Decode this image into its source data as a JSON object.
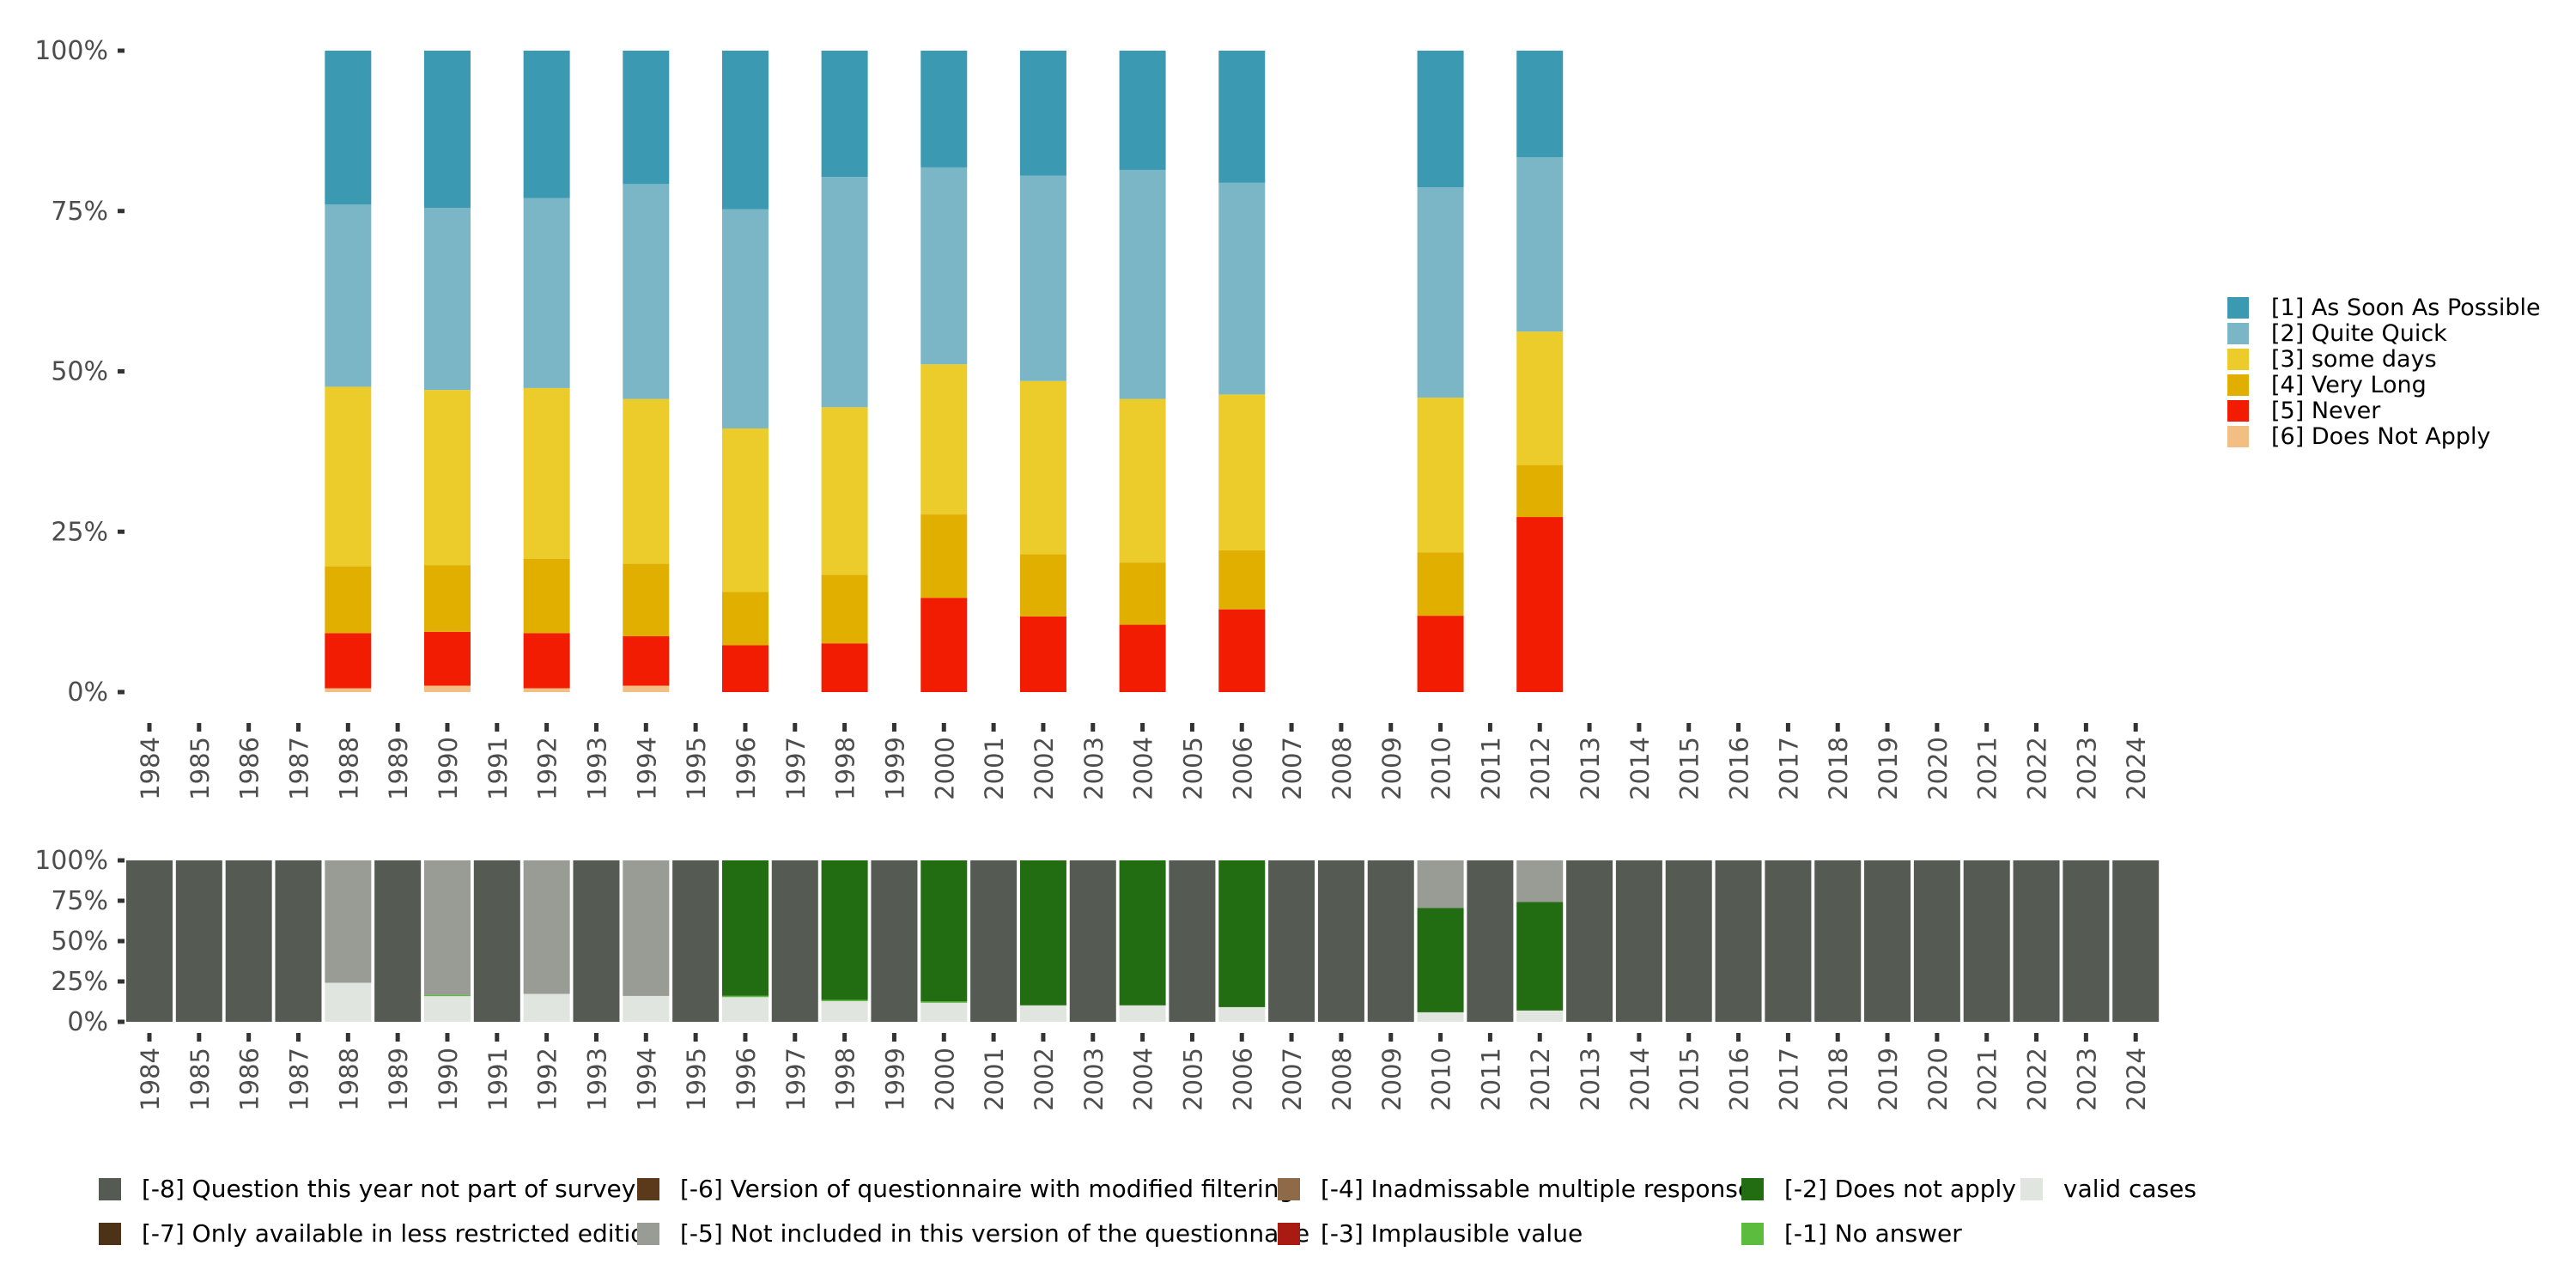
{
  "chart_data": [
    {
      "id": "response-distribution",
      "type": "bar",
      "stacked": true,
      "normalized": true,
      "title": "",
      "xlabel": "",
      "ylabel": "",
      "ylim": [
        0,
        100
      ],
      "y_ticks": [
        "0%",
        "25%",
        "50%",
        "75%",
        "100%"
      ],
      "y_tick_values": [
        0,
        25,
        50,
        75,
        100
      ],
      "grid": false,
      "legend_position": "right",
      "categories": [
        "1984",
        "1985",
        "1986",
        "1987",
        "1988",
        "1989",
        "1990",
        "1991",
        "1992",
        "1993",
        "1994",
        "1995",
        "1996",
        "1997",
        "1998",
        "1999",
        "2000",
        "2001",
        "2002",
        "2003",
        "2004",
        "2005",
        "2006",
        "2007",
        "2008",
        "2009",
        "2010",
        "2011",
        "2012",
        "2013",
        "2014",
        "2015",
        "2016",
        "2017",
        "2018",
        "2019",
        "2020",
        "2021",
        "2022",
        "2023",
        "2024"
      ],
      "bar_years": [
        "1988",
        "1990",
        "1992",
        "1994",
        "1996",
        "1998",
        "2000",
        "2002",
        "2004",
        "2006",
        "2010",
        "2012"
      ],
      "series": [
        {
          "name": "[6] Does Not Apply",
          "color": "#F2BE83",
          "values": [
            0.6,
            1.0,
            0.6,
            1.0,
            0,
            0,
            0,
            0,
            0,
            0,
            0,
            0
          ]
        },
        {
          "name": "[5] Never",
          "color": "#F21C02",
          "values": [
            8.6,
            8.4,
            8.6,
            7.7,
            7.3,
            7.6,
            14.7,
            11.8,
            10.5,
            12.9,
            11.9,
            27.3
          ]
        },
        {
          "name": "[4] Very Long",
          "color": "#E0AF00",
          "values": [
            10.4,
            10.4,
            11.6,
            11.3,
            8.3,
            10.7,
            13.0,
            9.7,
            9.7,
            9.2,
            9.9,
            8.1
          ]
        },
        {
          "name": "[3] some days",
          "color": "#EBCC2A",
          "values": [
            28.0,
            27.3,
            26.6,
            25.7,
            25.5,
            26.1,
            23.4,
            27.0,
            25.5,
            24.3,
            24.1,
            20.8
          ]
        },
        {
          "name": "[2] Quite Quick",
          "color": "#7AB6C5",
          "values": [
            28.4,
            28.4,
            29.6,
            33.5,
            34.2,
            35.9,
            30.7,
            32.0,
            35.7,
            33.0,
            32.8,
            27.2
          ]
        },
        {
          "name": "[1] As Soon As Possible",
          "color": "#3B9AB2",
          "values": [
            24.0,
            24.5,
            23.0,
            20.8,
            24.7,
            19.7,
            18.2,
            19.5,
            18.6,
            20.6,
            21.3,
            16.6
          ]
        }
      ],
      "legend": [
        {
          "label": "[1] As Soon As Possible",
          "color": "#3B9AB2"
        },
        {
          "label": "[2] Quite Quick",
          "color": "#7AB6C5"
        },
        {
          "label": "[3] some days",
          "color": "#EBCC2A"
        },
        {
          "label": "[4] Very Long",
          "color": "#E0AF00"
        },
        {
          "label": "[5] Never",
          "color": "#F21C02"
        },
        {
          "label": "[6] Does Not Apply",
          "color": "#F2BE83"
        }
      ]
    },
    {
      "id": "missing-values",
      "type": "bar",
      "stacked": true,
      "normalized": true,
      "title": "",
      "xlabel": "",
      "ylabel": "",
      "ylim": [
        0,
        100
      ],
      "y_ticks": [
        "0%",
        "25%",
        "50%",
        "75%",
        "100%"
      ],
      "y_tick_values": [
        0,
        25,
        50,
        75,
        100
      ],
      "grid": false,
      "legend_position": "bottom",
      "categories": [
        "1984",
        "1985",
        "1986",
        "1987",
        "1988",
        "1989",
        "1990",
        "1991",
        "1992",
        "1993",
        "1994",
        "1995",
        "1996",
        "1997",
        "1998",
        "1999",
        "2000",
        "2001",
        "2002",
        "2003",
        "2004",
        "2005",
        "2006",
        "2007",
        "2008",
        "2009",
        "2010",
        "2011",
        "2012",
        "2013",
        "2014",
        "2015",
        "2016",
        "2017",
        "2018",
        "2019",
        "2020",
        "2021",
        "2022",
        "2023",
        "2024"
      ],
      "series": [
        {
          "name": "valid cases",
          "color": "#E0E5E0",
          "values": [
            0,
            0,
            0,
            0,
            24.2,
            0,
            16.3,
            0,
            17.3,
            0,
            16.0,
            0,
            15.7,
            0,
            13.2,
            0,
            12.2,
            0,
            10.2,
            0,
            10.2,
            0,
            9.1,
            0,
            0,
            0,
            5.9,
            0,
            7.0,
            0,
            0,
            0,
            0,
            0,
            0,
            0,
            0,
            0,
            0,
            0,
            0
          ]
        },
        {
          "name": "[-1] No answer",
          "color": "#5BBC3D",
          "values": [
            0,
            0,
            0,
            0,
            0,
            0,
            0.4,
            0,
            0,
            0,
            0,
            0,
            0.4,
            0,
            0.4,
            0,
            0.4,
            0,
            0,
            0,
            0,
            0,
            0,
            0,
            0,
            0,
            0,
            0,
            0,
            0,
            0,
            0,
            0,
            0,
            0,
            0,
            0,
            0,
            0,
            0,
            0
          ]
        },
        {
          "name": "[-2] Does not apply",
          "color": "#226C11",
          "values": [
            0,
            0,
            0,
            0,
            0,
            0,
            0,
            0,
            0,
            0,
            0,
            0,
            83.9,
            0,
            86.4,
            0,
            87.4,
            0,
            89.8,
            0,
            89.8,
            0,
            90.9,
            0,
            0,
            0,
            64.7,
            0,
            67.3,
            0,
            0,
            0,
            0,
            0,
            0,
            0,
            0,
            0,
            0,
            0,
            0
          ]
        },
        {
          "name": "[-5] Not included in this version of the questionnaire",
          "color": "#989C94",
          "values": [
            0,
            0,
            0,
            0,
            75.8,
            0,
            83.3,
            0,
            82.7,
            0,
            84.0,
            0,
            0,
            0,
            0,
            0,
            0,
            0,
            0,
            0,
            0,
            0,
            0,
            0,
            0,
            0,
            29.4,
            0,
            25.7,
            0,
            0,
            0,
            0,
            0,
            0,
            0,
            0,
            0,
            0,
            0,
            0
          ]
        },
        {
          "name": "[-8] Question this year not part of survey",
          "color": "#555B53",
          "values": [
            100,
            100,
            100,
            100,
            0,
            100,
            0,
            100,
            0,
            100,
            0,
            100,
            0,
            100,
            0,
            100,
            0,
            100,
            0,
            100,
            0,
            100,
            0,
            100,
            100,
            100,
            0,
            100,
            0,
            100,
            100,
            100,
            100,
            100,
            100,
            100,
            100,
            100,
            100,
            100,
            100
          ]
        }
      ],
      "legend": [
        {
          "label": "[-8] Question this year not part of survey",
          "color": "#555B53"
        },
        {
          "label": "[-7] Only available in less restricted edition",
          "color": "#4E3217"
        },
        {
          "label": "[-6] Version of questionnaire with modified filtering",
          "color": "#5A3A1A"
        },
        {
          "label": "[-5] Not included in this version of the questionnaire",
          "color": "#989C94"
        },
        {
          "label": "[-4] Inadmissable multiple response",
          "color": "#8F6A48"
        },
        {
          "label": "[-3] Implausible value",
          "color": "#A81A12"
        },
        {
          "label": "[-2] Does not apply",
          "color": "#226C11"
        },
        {
          "label": "[-1] No answer",
          "color": "#5BBC3D"
        },
        {
          "label": "valid cases",
          "color": "#E0E5E0"
        }
      ]
    }
  ]
}
